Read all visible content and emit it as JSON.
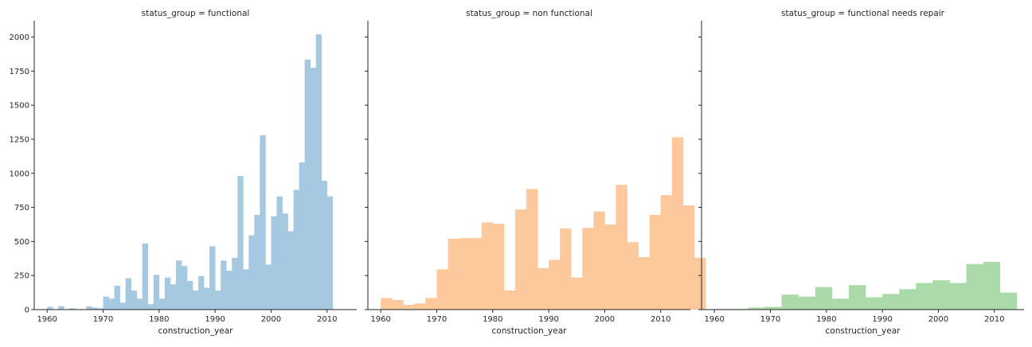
{
  "chart_data": [
    {
      "type": "bar",
      "title": "status_group = functional",
      "xlabel": "construction_year",
      "ylabel": "",
      "color": "#a5c9e1",
      "xlim": [
        1957.7,
        2015.3
      ],
      "ylim": [
        0,
        2120
      ],
      "xticks": [
        1960,
        1970,
        1980,
        1990,
        2000,
        2010
      ],
      "yticks": [
        0,
        250,
        500,
        750,
        1000,
        1250,
        1500,
        1750,
        2000
      ],
      "bin_start": 1960,
      "bin_width": 1,
      "values": [
        20,
        0,
        25,
        0,
        10,
        0,
        0,
        25,
        15,
        10,
        95,
        80,
        175,
        50,
        230,
        140,
        80,
        485,
        40,
        255,
        80,
        235,
        185,
        360,
        320,
        210,
        140,
        245,
        160,
        465,
        140,
        360,
        285,
        380,
        980,
        295,
        545,
        695,
        1280,
        330,
        685,
        830,
        705,
        575,
        880,
        1080,
        1835,
        1775,
        2020,
        945,
        830
      ]
    },
    {
      "type": "bar",
      "title": "status_group = non functional",
      "xlabel": "construction_year",
      "ylabel": "",
      "color": "#fdc99c",
      "xlim": [
        1957.7,
        2015.3
      ],
      "ylim": [
        0,
        2120
      ],
      "xticks": [
        1960,
        1970,
        1980,
        1990,
        2000,
        2010
      ],
      "bin_start": 1960,
      "bin_width": 2,
      "values": [
        85,
        70,
        35,
        45,
        85,
        295,
        520,
        525,
        525,
        640,
        630,
        140,
        735,
        885,
        305,
        365,
        595,
        235,
        600,
        720,
        625,
        915,
        495,
        385,
        695,
        840,
        1265,
        765,
        380
      ]
    },
    {
      "type": "bar",
      "title": "status_group = functional needs repair",
      "xlabel": "construction_year",
      "ylabel": "",
      "color": "#aadaa8",
      "xlim": [
        1957.7,
        2015.3
      ],
      "ylim": [
        0,
        2120
      ],
      "xticks": [
        1960,
        1970,
        1980,
        1990,
        2000,
        2010
      ],
      "bin_start": 1960,
      "bin_width": 3,
      "values": [
        5,
        5,
        15,
        20,
        110,
        95,
        165,
        80,
        180,
        90,
        115,
        150,
        195,
        215,
        195,
        335,
        350,
        125
      ]
    }
  ]
}
